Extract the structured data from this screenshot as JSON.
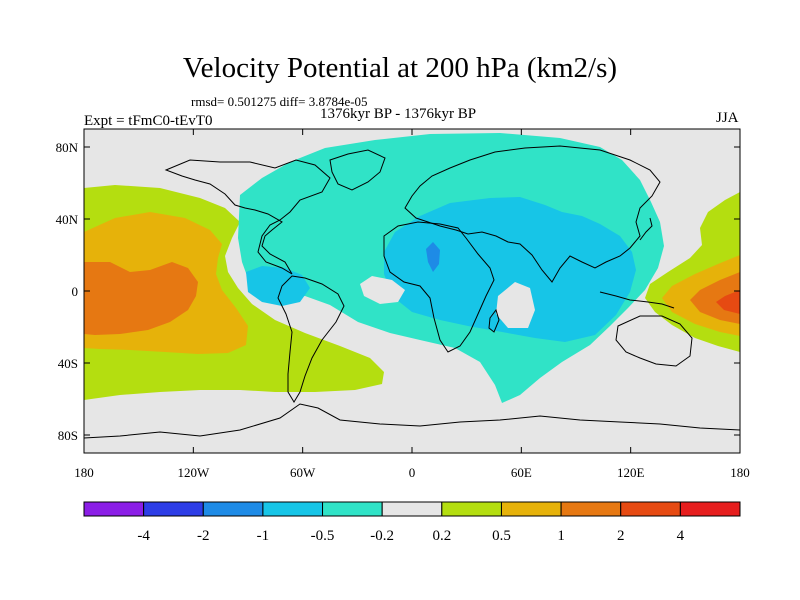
{
  "title": "Velocity Potential at 200 hPa (km2/s)",
  "stats": "rmsd= 0.501275 diff= 3.8784e-05",
  "period": "1376kyr BP - 1376kyr BP",
  "experiment": "Expt = tFmC0-tEvT0",
  "season": "JJA",
  "map": {
    "projection": "cylindrical-equidistant",
    "lon_range": [
      -180,
      180
    ],
    "lat_range": [
      -90,
      90
    ],
    "lon_ticks": [
      {
        "value": -180,
        "label": "180"
      },
      {
        "value": -120,
        "label": "120W"
      },
      {
        "value": -60,
        "label": "60W"
      },
      {
        "value": 0,
        "label": "0"
      },
      {
        "value": 60,
        "label": "60E"
      },
      {
        "value": 120,
        "label": "120E"
      },
      {
        "value": 180,
        "label": "180"
      }
    ],
    "lat_ticks": [
      {
        "value": 80,
        "label": "80N"
      },
      {
        "value": 40,
        "label": "40N"
      },
      {
        "value": 0,
        "label": "0"
      },
      {
        "value": -40,
        "label": "40S"
      },
      {
        "value": -80,
        "label": "80S"
      }
    ],
    "background_color": "#e6e6e6",
    "field_regions": [
      {
        "name": "eurasia-africa-negative",
        "color": "#30e3c7"
      },
      {
        "name": "africa-core-negative",
        "color": "#17c5e7"
      },
      {
        "name": "pacific-positive-outer",
        "color": "#b4de10"
      },
      {
        "name": "pacific-positive-mid",
        "color": "#e6b20a"
      },
      {
        "name": "pacific-positive-core",
        "color": "#e67812"
      },
      {
        "name": "west-pacific-positive",
        "color": "#b4de10"
      }
    ]
  },
  "legend": {
    "colors": [
      "#8b1ee6",
      "#2d3de6",
      "#1e8be6",
      "#17c5e7",
      "#30e3c7",
      "#e6e6e6",
      "#b4de10",
      "#e6b20a",
      "#e67812",
      "#e64a12",
      "#e61e1e"
    ],
    "labels": [
      "-4",
      "-2",
      "-1",
      "-0.5",
      "-0.2",
      "0.2",
      "0.5",
      "1",
      "2",
      "4"
    ]
  }
}
